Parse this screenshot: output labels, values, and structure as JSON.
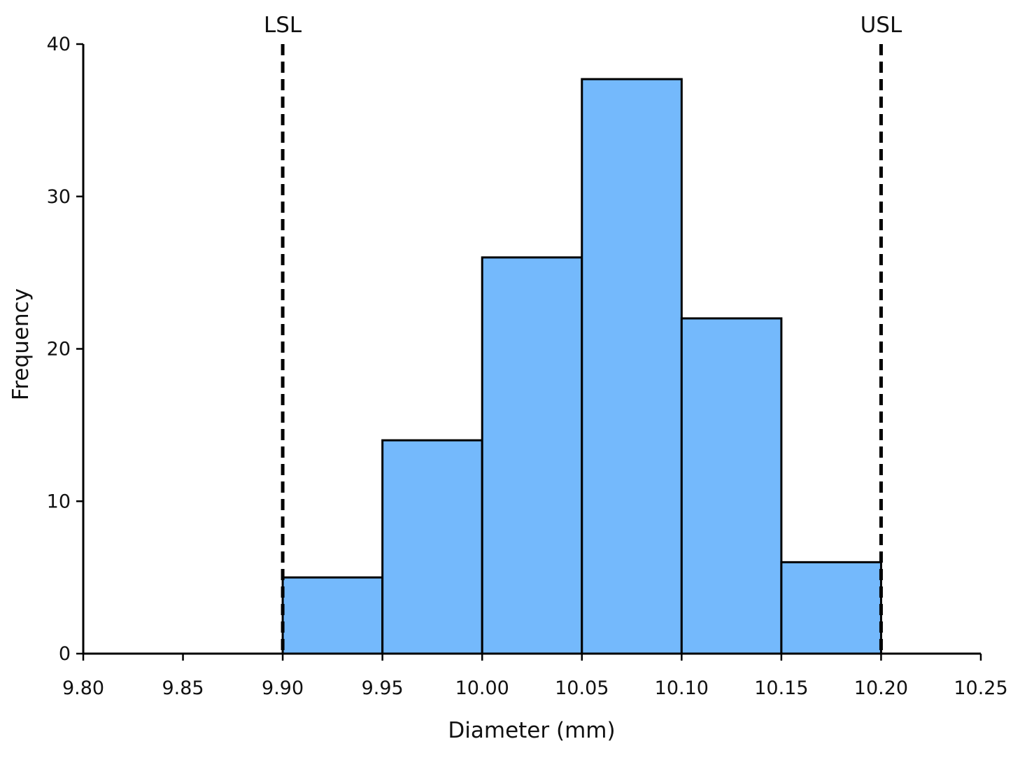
{
  "chart_data": {
    "type": "bar",
    "subtype": "histogram",
    "title": "",
    "xlabel": "Diameter (mm)",
    "ylabel": "Frequency",
    "xlim": [
      9.8,
      10.25
    ],
    "ylim": [
      0,
      40
    ],
    "x_ticks": [
      "9.80",
      "9.85",
      "9.90",
      "9.95",
      "10.00",
      "10.05",
      "10.10",
      "10.15",
      "10.20",
      "10.25"
    ],
    "y_ticks": [
      "0",
      "10",
      "20",
      "30",
      "40"
    ],
    "bins": [
      {
        "start": 9.9,
        "end": 9.95,
        "value": 5
      },
      {
        "start": 9.95,
        "end": 10.0,
        "value": 14
      },
      {
        "start": 10.0,
        "end": 10.05,
        "value": 26
      },
      {
        "start": 10.05,
        "end": 10.1,
        "value": 37.7
      },
      {
        "start": 10.1,
        "end": 10.15,
        "value": 22
      },
      {
        "start": 10.15,
        "end": 10.2,
        "value": 6
      }
    ],
    "reference_lines": [
      {
        "label": "LSL",
        "x": 9.9
      },
      {
        "label": "USL",
        "x": 10.2
      }
    ],
    "bar_color": "#74b9fc",
    "edge_color": "#000000",
    "grid": false,
    "legend": "none"
  }
}
